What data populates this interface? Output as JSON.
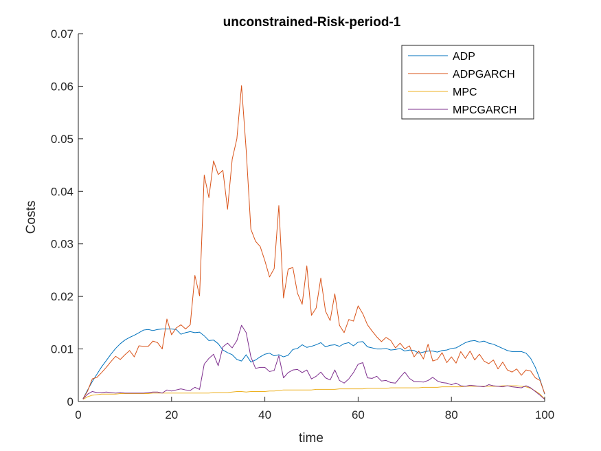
{
  "chart_data": {
    "type": "line",
    "title": "unconstrained-Risk-period-1",
    "xlabel": "time",
    "ylabel": "Costs",
    "xlim": [
      0,
      100
    ],
    "ylim": [
      0,
      0.07
    ],
    "xticks": [
      "0",
      "20",
      "40",
      "60",
      "80",
      "100"
    ],
    "yticks": [
      "0",
      "0.01",
      "0.02",
      "0.03",
      "0.04",
      "0.05",
      "0.06",
      "0.07"
    ],
    "grid": false,
    "legend_position": "top-right",
    "x": [
      1,
      2,
      3,
      4,
      5,
      6,
      7,
      8,
      9,
      10,
      11,
      12,
      13,
      14,
      15,
      16,
      17,
      18,
      19,
      20,
      21,
      22,
      23,
      24,
      25,
      26,
      27,
      28,
      29,
      30,
      31,
      32,
      33,
      34,
      35,
      36,
      37,
      38,
      39,
      40,
      41,
      42,
      43,
      44,
      45,
      46,
      47,
      48,
      49,
      50,
      51,
      52,
      53,
      54,
      55,
      56,
      57,
      58,
      59,
      60,
      61,
      62,
      63,
      64,
      65,
      66,
      67,
      68,
      69,
      70,
      71,
      72,
      73,
      74,
      75,
      76,
      77,
      78,
      79,
      80,
      81,
      82,
      83,
      84,
      85,
      86,
      87,
      88,
      89,
      90,
      91,
      92,
      93,
      94,
      95,
      96,
      97,
      98,
      99,
      100
    ],
    "series": [
      {
        "name": "ADP",
        "color": "#0072BD",
        "values": [
          0.0005,
          0.0022,
          0.0038,
          0.0052,
          0.0066,
          0.0078,
          0.009,
          0.0101,
          0.011,
          0.0117,
          0.0122,
          0.0126,
          0.0131,
          0.0136,
          0.0137,
          0.0135,
          0.0137,
          0.0138,
          0.0138,
          0.0138,
          0.0137,
          0.0128,
          0.0131,
          0.0133,
          0.0131,
          0.0132,
          0.0125,
          0.0116,
          0.0117,
          0.011,
          0.0098,
          0.0093,
          0.0089,
          0.008,
          0.0077,
          0.0089,
          0.0075,
          0.0079,
          0.0085,
          0.009,
          0.0092,
          0.0087,
          0.0089,
          0.0085,
          0.0088,
          0.0099,
          0.0101,
          0.0108,
          0.0103,
          0.0105,
          0.0108,
          0.0112,
          0.0104,
          0.0107,
          0.0108,
          0.0105,
          0.011,
          0.0112,
          0.0106,
          0.0113,
          0.0114,
          0.0104,
          0.0102,
          0.01,
          0.01,
          0.0101,
          0.0098,
          0.0099,
          0.0101,
          0.0096,
          0.0098,
          0.0097,
          0.0092,
          0.0094,
          0.0096,
          0.0096,
          0.0094,
          0.0097,
          0.0098,
          0.0101,
          0.0102,
          0.0107,
          0.0112,
          0.0115,
          0.0116,
          0.0113,
          0.0115,
          0.0111,
          0.0109,
          0.0105,
          0.0101,
          0.0097,
          0.0095,
          0.0095,
          0.0095,
          0.0092,
          0.0082,
          0.0065,
          0.0042,
          0.0014
        ]
      },
      {
        "name": "ADPGARCH",
        "color": "#D95319",
        "values": [
          0.0005,
          0.002,
          0.0043,
          0.0046,
          0.0055,
          0.0065,
          0.0076,
          0.0086,
          0.008,
          0.0089,
          0.0097,
          0.0085,
          0.0106,
          0.0105,
          0.0105,
          0.0115,
          0.0112,
          0.01,
          0.0157,
          0.0127,
          0.014,
          0.0146,
          0.0138,
          0.0146,
          0.024,
          0.0201,
          0.0431,
          0.0388,
          0.0458,
          0.0432,
          0.044,
          0.0366,
          0.0461,
          0.05,
          0.0601,
          0.0478,
          0.0328,
          0.0305,
          0.0295,
          0.0268,
          0.0237,
          0.0253,
          0.0373,
          0.0197,
          0.0252,
          0.0255,
          0.0206,
          0.0185,
          0.0258,
          0.0164,
          0.0178,
          0.0235,
          0.0172,
          0.0154,
          0.0205,
          0.0145,
          0.0131,
          0.0156,
          0.0153,
          0.0182,
          0.0167,
          0.0146,
          0.0134,
          0.0123,
          0.0114,
          0.0122,
          0.0116,
          0.0102,
          0.0111,
          0.01,
          0.0106,
          0.0085,
          0.0096,
          0.0081,
          0.0109,
          0.0077,
          0.008,
          0.0093,
          0.0074,
          0.0085,
          0.0073,
          0.0095,
          0.0082,
          0.0096,
          0.0079,
          0.009,
          0.0077,
          0.0072,
          0.0079,
          0.0062,
          0.0075,
          0.006,
          0.0056,
          0.0062,
          0.005,
          0.006,
          0.0058,
          0.0045,
          0.004,
          0.0015
        ]
      },
      {
        "name": "MPC",
        "color": "#EDB120",
        "values": [
          0.0004,
          0.0009,
          0.0012,
          0.0013,
          0.0014,
          0.0014,
          0.0014,
          0.0014,
          0.0015,
          0.0015,
          0.0015,
          0.0015,
          0.0015,
          0.0015,
          0.0015,
          0.0016,
          0.0016,
          0.0016,
          0.0016,
          0.0016,
          0.0016,
          0.0016,
          0.0016,
          0.0016,
          0.0016,
          0.0016,
          0.0016,
          0.0016,
          0.0017,
          0.0017,
          0.0017,
          0.0017,
          0.0018,
          0.0019,
          0.0019,
          0.0018,
          0.0019,
          0.0019,
          0.0019,
          0.0019,
          0.002,
          0.002,
          0.0021,
          0.0022,
          0.0022,
          0.0022,
          0.0022,
          0.0022,
          0.0022,
          0.0022,
          0.0023,
          0.0023,
          0.0023,
          0.0023,
          0.0023,
          0.0024,
          0.0024,
          0.0024,
          0.0024,
          0.0024,
          0.0024,
          0.0025,
          0.0025,
          0.0025,
          0.0025,
          0.0025,
          0.0026,
          0.0026,
          0.0026,
          0.0026,
          0.0026,
          0.0026,
          0.0026,
          0.0027,
          0.0027,
          0.0027,
          0.0027,
          0.0028,
          0.0028,
          0.0028,
          0.0028,
          0.0028,
          0.0029,
          0.0029,
          0.0029,
          0.0029,
          0.0029,
          0.0029,
          0.0029,
          0.0029,
          0.003,
          0.003,
          0.003,
          0.003,
          0.0029,
          0.0028,
          0.0025,
          0.002,
          0.0014,
          0.0005
        ]
      },
      {
        "name": "MPCGARCH",
        "color": "#7E2F8E",
        "values": [
          0.0005,
          0.0014,
          0.0019,
          0.0017,
          0.0017,
          0.0018,
          0.0017,
          0.0016,
          0.0017,
          0.0016,
          0.0016,
          0.0016,
          0.0016,
          0.0016,
          0.0017,
          0.0018,
          0.0018,
          0.0016,
          0.0022,
          0.002,
          0.0022,
          0.0024,
          0.0022,
          0.0021,
          0.0027,
          0.0023,
          0.0071,
          0.0082,
          0.009,
          0.0068,
          0.0104,
          0.0111,
          0.0102,
          0.0116,
          0.0145,
          0.0131,
          0.0085,
          0.0063,
          0.0065,
          0.0065,
          0.0057,
          0.0059,
          0.0087,
          0.0045,
          0.0055,
          0.006,
          0.0061,
          0.0055,
          0.006,
          0.0043,
          0.0048,
          0.0056,
          0.0045,
          0.0041,
          0.006,
          0.004,
          0.0035,
          0.0043,
          0.0055,
          0.0071,
          0.0074,
          0.0045,
          0.0044,
          0.0048,
          0.0039,
          0.004,
          0.0036,
          0.0035,
          0.0046,
          0.0056,
          0.0044,
          0.0038,
          0.0038,
          0.0037,
          0.004,
          0.0046,
          0.0039,
          0.0036,
          0.0035,
          0.0032,
          0.0035,
          0.003,
          0.0029,
          0.0031,
          0.003,
          0.0029,
          0.0028,
          0.0032,
          0.003,
          0.0029,
          0.0028,
          0.003,
          0.0028,
          0.0027,
          0.0026,
          0.003,
          0.0026,
          0.0019,
          0.0012,
          0.0004
        ]
      }
    ]
  }
}
